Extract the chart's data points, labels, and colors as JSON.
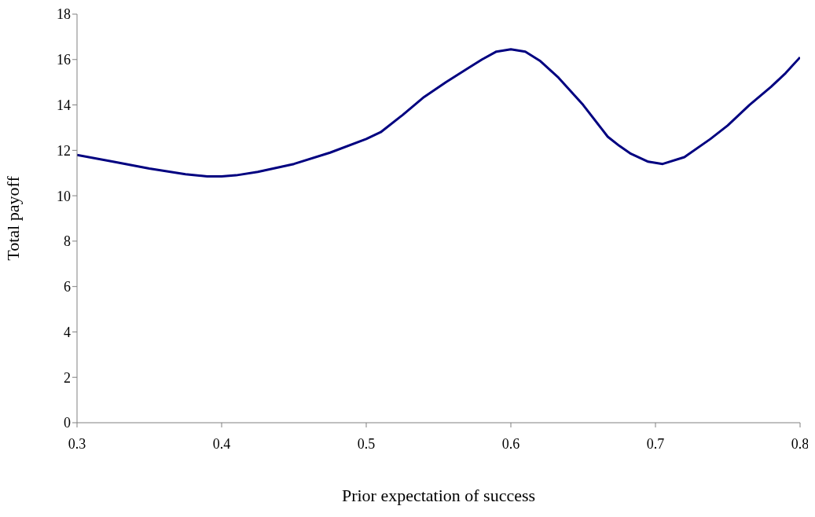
{
  "chart_data": {
    "type": "line",
    "xlabel": "Prior expectation of success",
    "ylabel": "Total payoff",
    "x": [
      0.3,
      0.325,
      0.35,
      0.375,
      0.39,
      0.4,
      0.41,
      0.425,
      0.45,
      0.475,
      0.5,
      0.51,
      0.525,
      0.54,
      0.555,
      0.57,
      0.58,
      0.59,
      0.6,
      0.61,
      0.62,
      0.633,
      0.65,
      0.667,
      0.675,
      0.683,
      0.695,
      0.705,
      0.72,
      0.738,
      0.75,
      0.765,
      0.78,
      0.79,
      0.8
    ],
    "series": [
      {
        "color": "#000080",
        "values": [
          11.8,
          11.5,
          11.2,
          10.95,
          10.85,
          10.85,
          10.9,
          11.05,
          11.4,
          11.9,
          12.5,
          12.8,
          13.55,
          14.35,
          15.0,
          15.6,
          16.0,
          16.35,
          16.45,
          16.35,
          15.95,
          15.2,
          14.0,
          12.6,
          12.2,
          11.85,
          11.5,
          11.4,
          11.7,
          12.5,
          13.1,
          14.0,
          14.8,
          15.4,
          16.1
        ]
      }
    ],
    "xlim": [
      0.3,
      0.8
    ],
    "xticks": [
      0.3,
      0.4,
      0.5,
      0.6,
      0.7,
      0.8
    ],
    "ylim": [
      0,
      18
    ],
    "yticks": [
      0,
      2,
      4,
      6,
      8,
      10,
      12,
      14,
      16,
      18
    ],
    "grid": false,
    "legend": false,
    "marker": "none",
    "line_style": "solid"
  }
}
